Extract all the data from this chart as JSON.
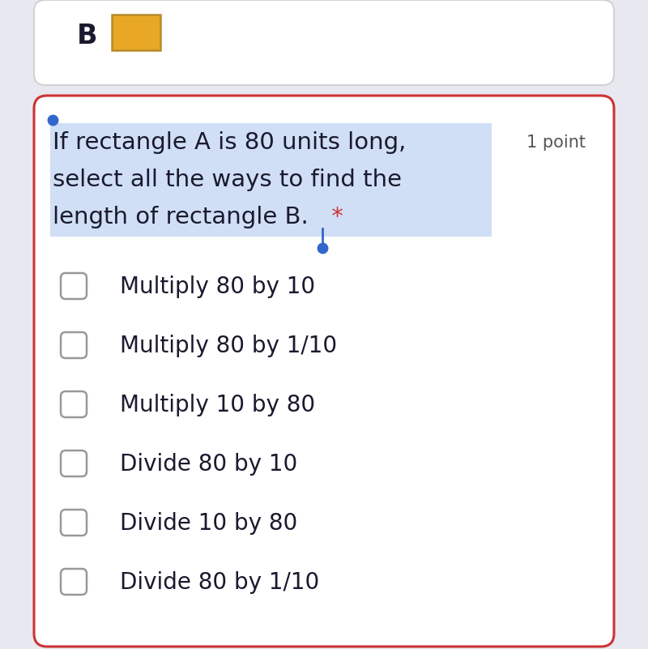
{
  "background_color": "#e8e8f0",
  "top_panel_bg": "#ffffff",
  "top_panel_border": "#cccccc",
  "top_label_B": "B",
  "top_rect_color": "#e8a825",
  "top_rect_border": "#b8892a",
  "main_panel_bg": "#ffffff",
  "main_panel_border": "#cc3333",
  "question_text_line1": "If rectangle A is 80 units long,",
  "question_text_line2": "select all the ways to find the",
  "question_text_line3": "length of rectangle B.",
  "question_highlight_color": "#d0dff5",
  "asterisk_color": "#cc3333",
  "point_label": "1 point",
  "point_label_color": "#555555",
  "question_text_color": "#1a1a2e",
  "question_fontsize": 21,
  "blue_dot_color": "#3366cc",
  "checkbox_border_color": "#999999",
  "checkbox_size": 32,
  "option_text_color": "#1a1a2e",
  "option_fontsize": 20,
  "options": [
    "Multiply 80 by 10",
    "Multiply 80 by 1/10",
    "Multiply 10 by 80",
    "Divide 80 by 10",
    "Divide 10 by 80",
    "Divide 80 by 1/10"
  ]
}
